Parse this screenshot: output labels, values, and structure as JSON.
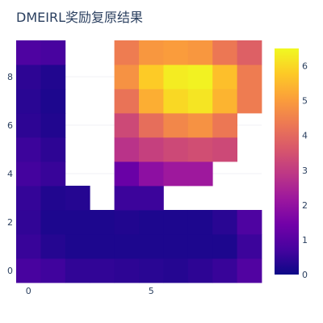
{
  "chart_data": {
    "type": "heatmap",
    "title": "DMEIRL奖励复原结果",
    "xlabel": "",
    "ylabel": "",
    "x_ticks": [
      0,
      5
    ],
    "y_ticks": [
      0,
      2,
      4,
      6,
      8
    ],
    "x_range": [
      -0.5,
      9.5
    ],
    "y_range": [
      -0.5,
      9.5
    ],
    "colorbar": {
      "min": 0,
      "max": 6.5,
      "ticks": [
        0,
        1,
        2,
        3,
        4,
        5,
        6
      ],
      "colorscale": "Plasma"
    },
    "rows": 10,
    "cols": 10,
    "z": [
      [
        0.75,
        0.65,
        0.45,
        0.45,
        0.4,
        0.35,
        0.3,
        0.4,
        0.55,
        0.9
      ],
      [
        0.55,
        0.3,
        0.2,
        0.2,
        0.2,
        0.2,
        0.2,
        0.2,
        0.2,
        0.6
      ],
      [
        0.45,
        0.2,
        0.2,
        0.2,
        0.25,
        0.2,
        0.2,
        0.2,
        0.35,
        0.85
      ],
      [
        0.5,
        0.25,
        0.3,
        null,
        0.6,
        0.6,
        null,
        null,
        null,
        null
      ],
      [
        0.7,
        0.55,
        null,
        null,
        1.3,
        1.9,
        2.2,
        2.2,
        null,
        null
      ],
      [
        0.6,
        0.4,
        null,
        null,
        2.8,
        3.1,
        3.3,
        3.4,
        3.3,
        null
      ],
      [
        0.4,
        0.25,
        null,
        null,
        3.3,
        4.1,
        4.6,
        4.8,
        4.3,
        null
      ],
      [
        0.35,
        0.2,
        null,
        null,
        4.2,
        5.3,
        6.0,
        6.2,
        5.4,
        4.4
      ],
      [
        0.4,
        0.25,
        null,
        null,
        4.8,
        5.8,
        6.3,
        6.4,
        5.6,
        4.4
      ],
      [
        0.85,
        0.75,
        null,
        null,
        4.4,
        4.9,
        5.0,
        4.9,
        4.3,
        3.8
      ]
    ]
  }
}
